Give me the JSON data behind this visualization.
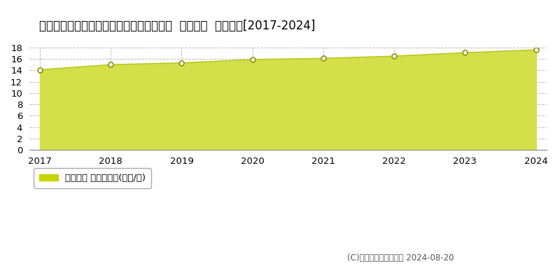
{
  "title": "埼玉県日高市大字大谷沢字藤塚１５番３外  地価公示  地価推移[2017-2024]",
  "years": [
    2017,
    2018,
    2019,
    2020,
    2021,
    2022,
    2023,
    2024
  ],
  "values": [
    14.1,
    15.0,
    15.3,
    15.9,
    16.1,
    16.5,
    17.1,
    17.6
  ],
  "ylim": [
    0,
    18
  ],
  "yticks": [
    0,
    2,
    4,
    6,
    8,
    10,
    12,
    14,
    16,
    18
  ],
  "line_color": "#b8c820",
  "fill_color": "#d4e04a",
  "fill_alpha": 1.0,
  "marker_color": "white",
  "marker_edge_color": "#909000",
  "background_color": "#ffffff",
  "grid_color": "#bbbbbb",
  "legend_label": "地価公示 平均坪単価(万円/坪)",
  "legend_color": "#c8d400",
  "copyright_text": "(C)土地価格ドットコム 2024-08-20",
  "title_fontsize": 12,
  "tick_fontsize": 9.5,
  "legend_fontsize": 9.5
}
